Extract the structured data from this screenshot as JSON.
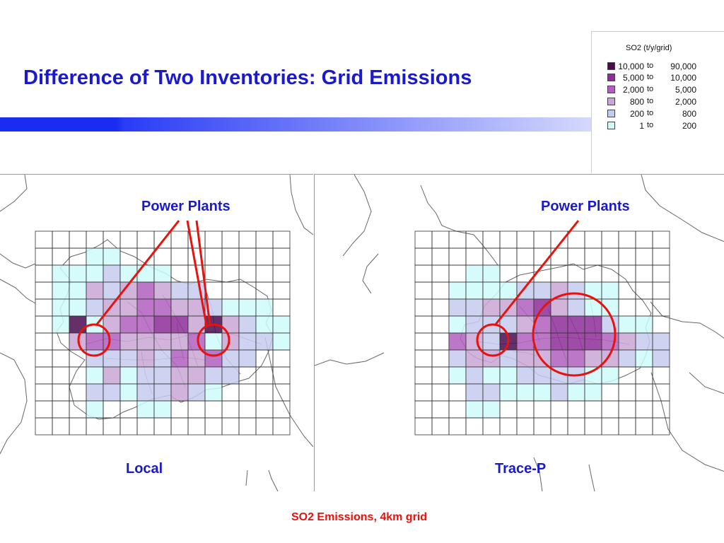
{
  "title": "Difference of Two Inventories: Grid Emissions",
  "caption": "SO2 Emissions, 4km grid",
  "colors": {
    "title": "#1a1acc",
    "caption": "#e8120c",
    "annotation": "#e8120c",
    "grid_line": "#333333",
    "boundary": "#666666"
  },
  "legend": {
    "title": "SO2 (t/y/grid)",
    "connector": "to",
    "classes": [
      {
        "level": 6,
        "low": "10,000",
        "high": "90,000",
        "color": "#4a0a4f"
      },
      {
        "level": 5,
        "low": "5,000",
        "high": "10,000",
        "color": "#8e2c99"
      },
      {
        "level": 4,
        "low": "2,000",
        "high": "5,000",
        "color": "#b25fbf"
      },
      {
        "level": 3,
        "low": "800",
        "high": "2,000",
        "color": "#c9a6d6"
      },
      {
        "level": 2,
        "low": "200",
        "high": "800",
        "color": "#c4cbef"
      },
      {
        "level": 1,
        "low": "1",
        "high": "200",
        "color": "#cffafa"
      }
    ]
  },
  "maps": [
    {
      "name": "Local",
      "annotation": "Power Plants",
      "grid": {
        "cols": 15,
        "rows": 12,
        "cells": [
          "000000000000000",
          "000110000000000",
          "011121110000000",
          "011323432200000",
          "011233443321110",
          "016134455363211",
          "003443333413221",
          "000222324342200",
          "000131223322000",
          "000221223210000",
          "000100110000000",
          "000000000000000"
        ]
      }
    },
    {
      "name": "Trace-P",
      "annotation": "Power Plants",
      "grid": {
        "cols": 15,
        "rows": 12,
        "cells": [
          "000000000000000",
          "000000000000000",
          "000110000000000",
          "001111223211000",
          "002233453211000",
          "001222345552110",
          "004326445554322",
          "002332334433212",
          "001211222211000",
          "000221112110000",
          "000110000000000",
          "000000000000000"
        ]
      }
    }
  ]
}
